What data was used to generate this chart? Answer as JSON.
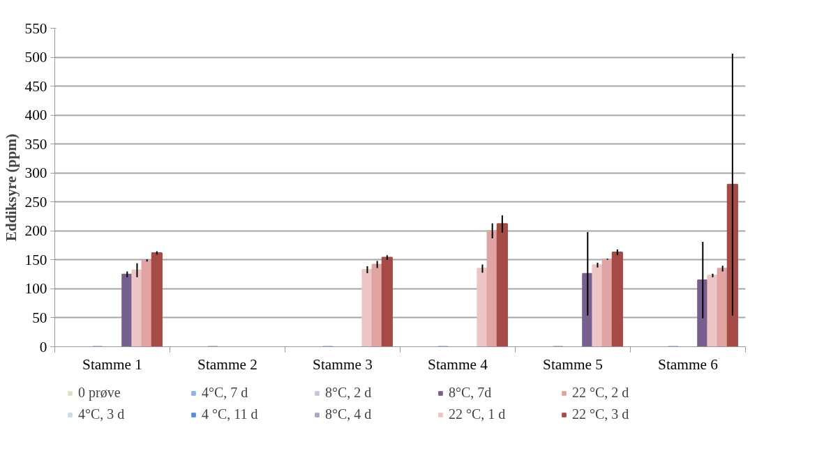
{
  "chart_data": {
    "type": "bar",
    "ylabel": "Eddiksyre (ppm)",
    "categories": [
      "Stamme 1",
      "Stamme 2",
      "Stamme 3",
      "Stamme 4",
      "Stamme 5",
      "Stamme 6"
    ],
    "ylim": [
      0,
      550
    ],
    "yticks": [
      0,
      50,
      100,
      150,
      200,
      250,
      300,
      350,
      400,
      450,
      500,
      550
    ],
    "grid": "y",
    "legend": "bottom",
    "series": [
      {
        "name": "0 prøve",
        "color": "#d7e4bd",
        "values": [
          null,
          null,
          null,
          null,
          null,
          null
        ]
      },
      {
        "name": "4°C, 3 d",
        "color": "#c6d9f1",
        "values": [
          null,
          null,
          null,
          null,
          null,
          null
        ]
      },
      {
        "name": "4°C, 7 d",
        "color": "#8eb4e3",
        "values": [
          null,
          null,
          null,
          null,
          null,
          null
        ]
      },
      {
        "name": "4 °C, 11 d",
        "color": "#558ed5",
        "values": [
          0,
          0,
          0,
          0,
          0,
          0
        ]
      },
      {
        "name": "8°C, 2 d",
        "color": "#ccc1da",
        "values": [
          null,
          null,
          null,
          null,
          null,
          null
        ]
      },
      {
        "name": "8°C, 4 d",
        "color": "#b3a2c7",
        "values": [
          null,
          null,
          null,
          null,
          null,
          null
        ]
      },
      {
        "name": "8°C, 7d",
        "color": "#775f8f",
        "values": [
          125,
          null,
          null,
          null,
          126,
          115
        ],
        "errors": [
          5,
          null,
          null,
          null,
          72,
          66
        ]
      },
      {
        "name": "22 °C, 1 d",
        "color": "#ecc5c4",
        "values": [
          132,
          null,
          133,
          135,
          141,
          123
        ],
        "errors": [
          12,
          null,
          6,
          7,
          4,
          3
        ]
      },
      {
        "name": "22 °C, 2 d",
        "color": "#e0a4a2",
        "values": [
          149,
          null,
          142,
          200,
          151,
          135
        ],
        "errors": [
          2,
          null,
          6,
          13,
          1,
          5
        ]
      },
      {
        "name": "22 °C, 3 d",
        "color": "#a64a45",
        "values": [
          162,
          null,
          154,
          212,
          163,
          280
        ],
        "errors": [
          3,
          null,
          4,
          15,
          5,
          226
        ]
      }
    ]
  }
}
